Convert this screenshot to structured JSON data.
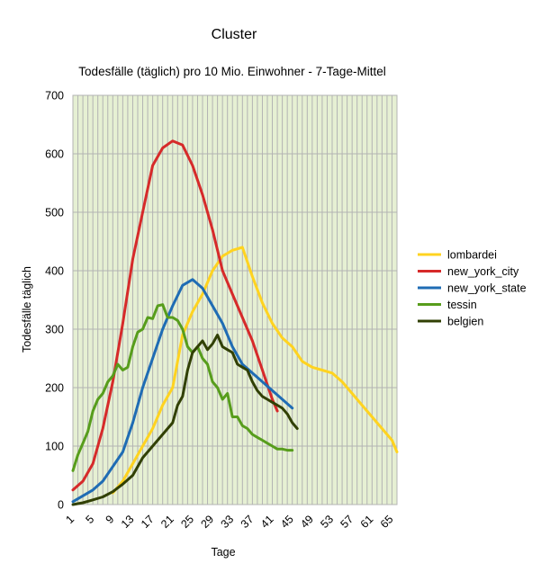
{
  "chart_data": {
    "type": "line",
    "title": "Cluster",
    "subtitle": "Todesfälle (täglich) pro 10 Mio. Einwohner - 7-Tage-Mittel",
    "xlabel": "Tage",
    "ylabel": "Todesfälle täglich",
    "xlim": [
      1,
      66
    ],
    "ylim": [
      0,
      700
    ],
    "yticks": [
      0,
      100,
      200,
      300,
      400,
      500,
      600,
      700
    ],
    "xticks": [
      1,
      5,
      9,
      13,
      17,
      21,
      25,
      29,
      33,
      37,
      41,
      45,
      49,
      53,
      57,
      61,
      65
    ],
    "grid": true,
    "legend": "right",
    "plot_background": "#e6f0d3",
    "series": [
      {
        "name": "lombardei",
        "color": "#ffd320",
        "x": [
          9,
          11,
          13,
          15,
          17,
          19,
          21,
          23,
          25,
          27,
          29,
          31,
          33,
          35,
          37,
          39,
          41,
          43,
          45,
          47,
          49,
          51,
          53,
          55,
          57,
          59,
          61,
          63,
          65,
          66
        ],
        "values": [
          20,
          40,
          70,
          100,
          130,
          170,
          200,
          290,
          330,
          360,
          400,
          425,
          435,
          440,
          390,
          345,
          310,
          285,
          270,
          245,
          235,
          230,
          225,
          210,
          190,
          170,
          150,
          130,
          110,
          90
        ]
      },
      {
        "name": "new_york_city",
        "color": "#d62a2a",
        "x": [
          1,
          3,
          5,
          7,
          9,
          11,
          13,
          15,
          17,
          19,
          21,
          23,
          25,
          27,
          29,
          31,
          33,
          35,
          37,
          39,
          41,
          42
        ],
        "values": [
          25,
          40,
          70,
          130,
          210,
          310,
          420,
          500,
          580,
          610,
          622,
          615,
          580,
          530,
          470,
          400,
          360,
          320,
          280,
          230,
          180,
          160
        ]
      },
      {
        "name": "new_york_state",
        "color": "#1f6cb4",
        "x": [
          1,
          3,
          5,
          7,
          9,
          11,
          13,
          15,
          17,
          19,
          21,
          23,
          25,
          27,
          29,
          31,
          33,
          35,
          37,
          39,
          41,
          43,
          45
        ],
        "values": [
          5,
          15,
          25,
          40,
          65,
          90,
          140,
          200,
          250,
          300,
          340,
          375,
          385,
          370,
          340,
          310,
          270,
          240,
          225,
          210,
          195,
          180,
          165
        ]
      },
      {
        "name": "tessin",
        "color": "#579d1c",
        "x": [
          1,
          2,
          3,
          4,
          5,
          6,
          7,
          8,
          9,
          10,
          11,
          12,
          13,
          14,
          15,
          16,
          17,
          18,
          19,
          20,
          21,
          22,
          23,
          24,
          25,
          26,
          27,
          28,
          29,
          30,
          31,
          32,
          33,
          34,
          35,
          36,
          37,
          38,
          39,
          40,
          41,
          42,
          43,
          44,
          45
        ],
        "values": [
          58,
          85,
          105,
          125,
          160,
          180,
          190,
          210,
          220,
          240,
          230,
          235,
          270,
          295,
          300,
          320,
          318,
          340,
          342,
          320,
          320,
          315,
          300,
          270,
          260,
          270,
          250,
          240,
          210,
          200,
          180,
          190,
          150,
          150,
          135,
          130,
          120,
          115,
          110,
          105,
          100,
          95,
          95,
          93,
          93
        ]
      },
      {
        "name": "belgien",
        "color": "#314004",
        "x": [
          1,
          3,
          5,
          7,
          9,
          11,
          13,
          15,
          17,
          19,
          21,
          22,
          23,
          24,
          25,
          26,
          27,
          28,
          29,
          30,
          31,
          32,
          33,
          34,
          35,
          36,
          37,
          38,
          39,
          40,
          41,
          42,
          43,
          44,
          45,
          46
        ],
        "values": [
          0,
          3,
          8,
          13,
          22,
          35,
          50,
          80,
          100,
          120,
          140,
          170,
          185,
          230,
          260,
          270,
          280,
          265,
          275,
          290,
          270,
          265,
          260,
          240,
          235,
          230,
          210,
          195,
          185,
          180,
          175,
          170,
          165,
          155,
          140,
          130
        ]
      }
    ]
  }
}
